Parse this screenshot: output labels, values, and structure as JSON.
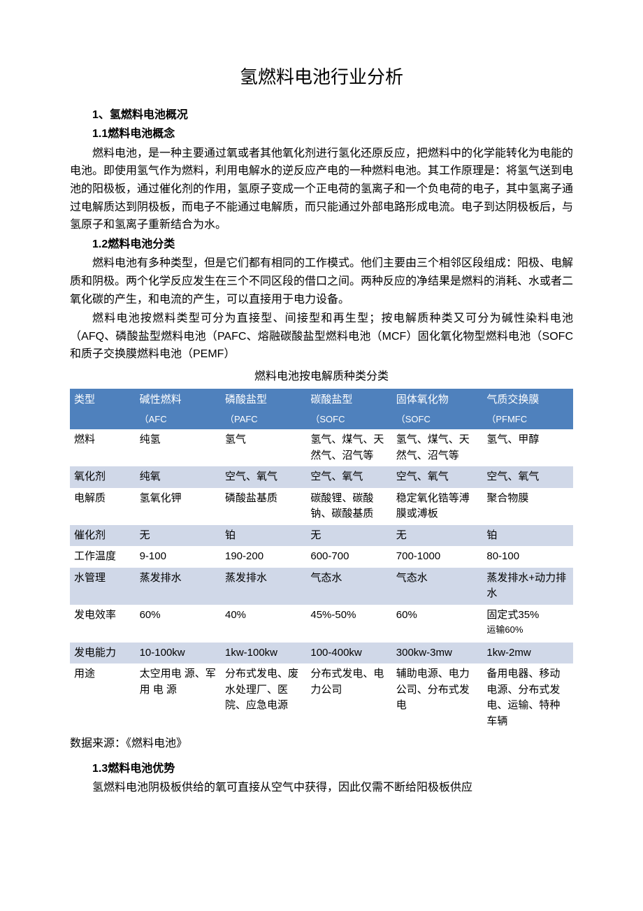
{
  "title": "氢燃料电池行业分析",
  "section1": {
    "num": "1",
    "title": "、氢燃料电池概况",
    "sub1": {
      "num": "1.1",
      "title": "燃料电池概念"
    },
    "para1": "燃料电池，是一种主要通过氧或者其他氧化剂进行氢化还原反应，把燃料中的化学能转化为电能的电池。即使用氢气作为燃料，利用电解水的逆反应产电的一种燃料电池。其工作原理是：将氢气送到电池的阳极板，通过催化剂的作用，氢原子变成一个正电荷的氢离子和一个负电荷的电子，其中氢离子通过电解质达到阴极板，而电子不能通过电解质，而只能通过外部电路形成电流。电子到达阴极板后，与氢原子和氢离子重新结合为水。",
    "sub2": {
      "num": "1.2",
      "title": "燃料电池分类"
    },
    "para2": "燃料电池有多种类型，但是它们都有相同的工作模式。他们主要由三个相邻区段组成：阳极、电解质和阴极。两个化学反应发生在三个不同区段的借口之间。两种反应的净结果是燃料的消耗、水或者二氧化碳的产生，和电流的产生，可以直接用于电力设备。",
    "para3": "燃料电池按燃料类型可分为直接型、间接型和再生型；按电解质种类又可分为碱性染料电池（AFQ、磷酸盐型燃料电池（PAFC、熔融碳酸盐型燃料电池（MCF）固化氧化物型燃料电池（SOFC和质子交换膜燃料电池（PEMF）",
    "table_title": "燃料电池按电解质种类分类",
    "sub3": {
      "num": "1.3",
      "title": "燃料电池优势"
    },
    "para4": "氢燃料电池阴极板供给的氧可直接从空气中获得，因此仅需不断给阳极板供应"
  },
  "table": {
    "header_colors": {
      "bg": "#4f81bd",
      "fg": "#ffffff"
    },
    "row_colors": {
      "odd": "#ffffff",
      "even": "#d0d8e8"
    },
    "header_row1": [
      "类型",
      "碱性燃料",
      "磷酸盐型",
      "碳酸盐型",
      "固体氧化物",
      "气质交换膜"
    ],
    "header_row2": [
      "",
      "（AFC",
      "（PAFC",
      "（SOFC",
      "（SOFC",
      "（PFMFC"
    ],
    "rows": [
      {
        "label": "燃料",
        "c1": "纯氢",
        "c2": "氢气",
        "c3": "氢气、煤气、天然气、沼气等",
        "c4": "氢气、煤气、天然气、沼气等",
        "c5": "氢气、甲醇"
      },
      {
        "label": "氧化剂",
        "c1": "纯氧",
        "c2": "空气、氧气",
        "c3": "空气、氧气",
        "c4": "空气、氧气",
        "c5": "空气、氧气"
      },
      {
        "label": "电解质",
        "c1": "氢氧化钾",
        "c2": "磷酸盐基质",
        "c3": "碳酸锂、碳酸钠、碳酸基质",
        "c4": "稳定氧化锆等溥膜或溥板",
        "c5": "聚合物膜"
      },
      {
        "label": "催化剂",
        "c1": "无",
        "c2": "铂",
        "c3": "无",
        "c4": "无",
        "c5": "铂"
      },
      {
        "label": "工作温度",
        "c1": "9-100",
        "c2": "190-200",
        "c3": "600-700",
        "c4": "700-1000",
        "c5": "80-100"
      },
      {
        "label": "水管理",
        "c1": "蒸发排水",
        "c2": "蒸发排水",
        "c3": "气态水",
        "c4": "气态水",
        "c5": "蒸发排水+动力排水"
      },
      {
        "label": "发电效率",
        "c1": "60%",
        "c2": "40%",
        "c3": "45%-50%",
        "c4": "60%",
        "c5": "固定式35%运输60%"
      },
      {
        "label": "发电能力",
        "c1": "10-100kw",
        "c2": "1kw-100kw",
        "c3": "100-400kw",
        "c4": "300kw-3mw",
        "c5": "1kw-2mw"
      },
      {
        "label": "用途",
        "c1": "太空用电 源、军用 电 源",
        "c2": "分布式发电、废水处理厂、医院、应急电源",
        "c3": "分布式发电、电力公司",
        "c4": "辅助电源、电力公司、分布式发电",
        "c5": "备用电器、移动电源、分布式发电、运输、特种车辆"
      }
    ]
  },
  "source": "数据来源：《燃料电池》"
}
